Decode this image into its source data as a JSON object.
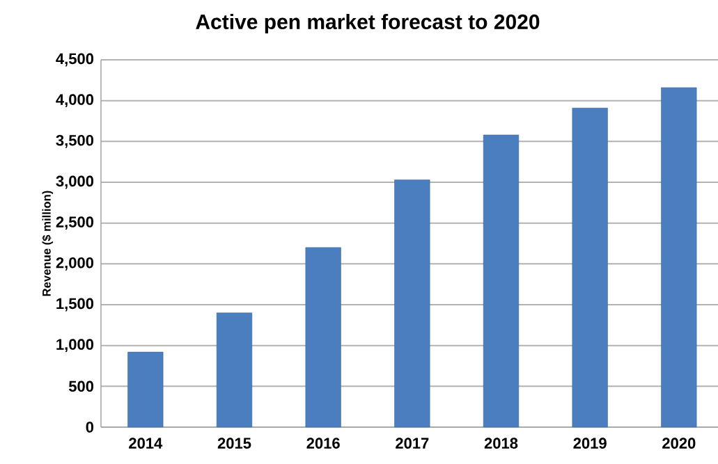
{
  "chart_data": {
    "type": "bar",
    "title": "Active pen market forecast to 2020",
    "ylabel": "Revenue ($ million)",
    "categories": [
      "2014",
      "2015",
      "2016",
      "2017",
      "2018",
      "2019",
      "2020"
    ],
    "values": [
      920,
      1400,
      2200,
      3030,
      3580,
      3910,
      4160
    ],
    "color": "#4a7ebf",
    "ylim": [
      0,
      4500
    ],
    "yticks": [
      0,
      500,
      {
        "value": 1000,
        "label": "1,000"
      },
      {
        "value": 1500,
        "label": "1,500"
      },
      {
        "value": 2000,
        "label": "2,000"
      },
      {
        "value": 2500,
        "label": "2,500"
      },
      {
        "value": 3000,
        "label": "3,000"
      },
      {
        "value": 3500,
        "label": "3,500"
      },
      {
        "value": 4000,
        "label": "4,000"
      },
      {
        "value": 4500,
        "label": "4,500"
      }
    ],
    "grid": "y"
  }
}
